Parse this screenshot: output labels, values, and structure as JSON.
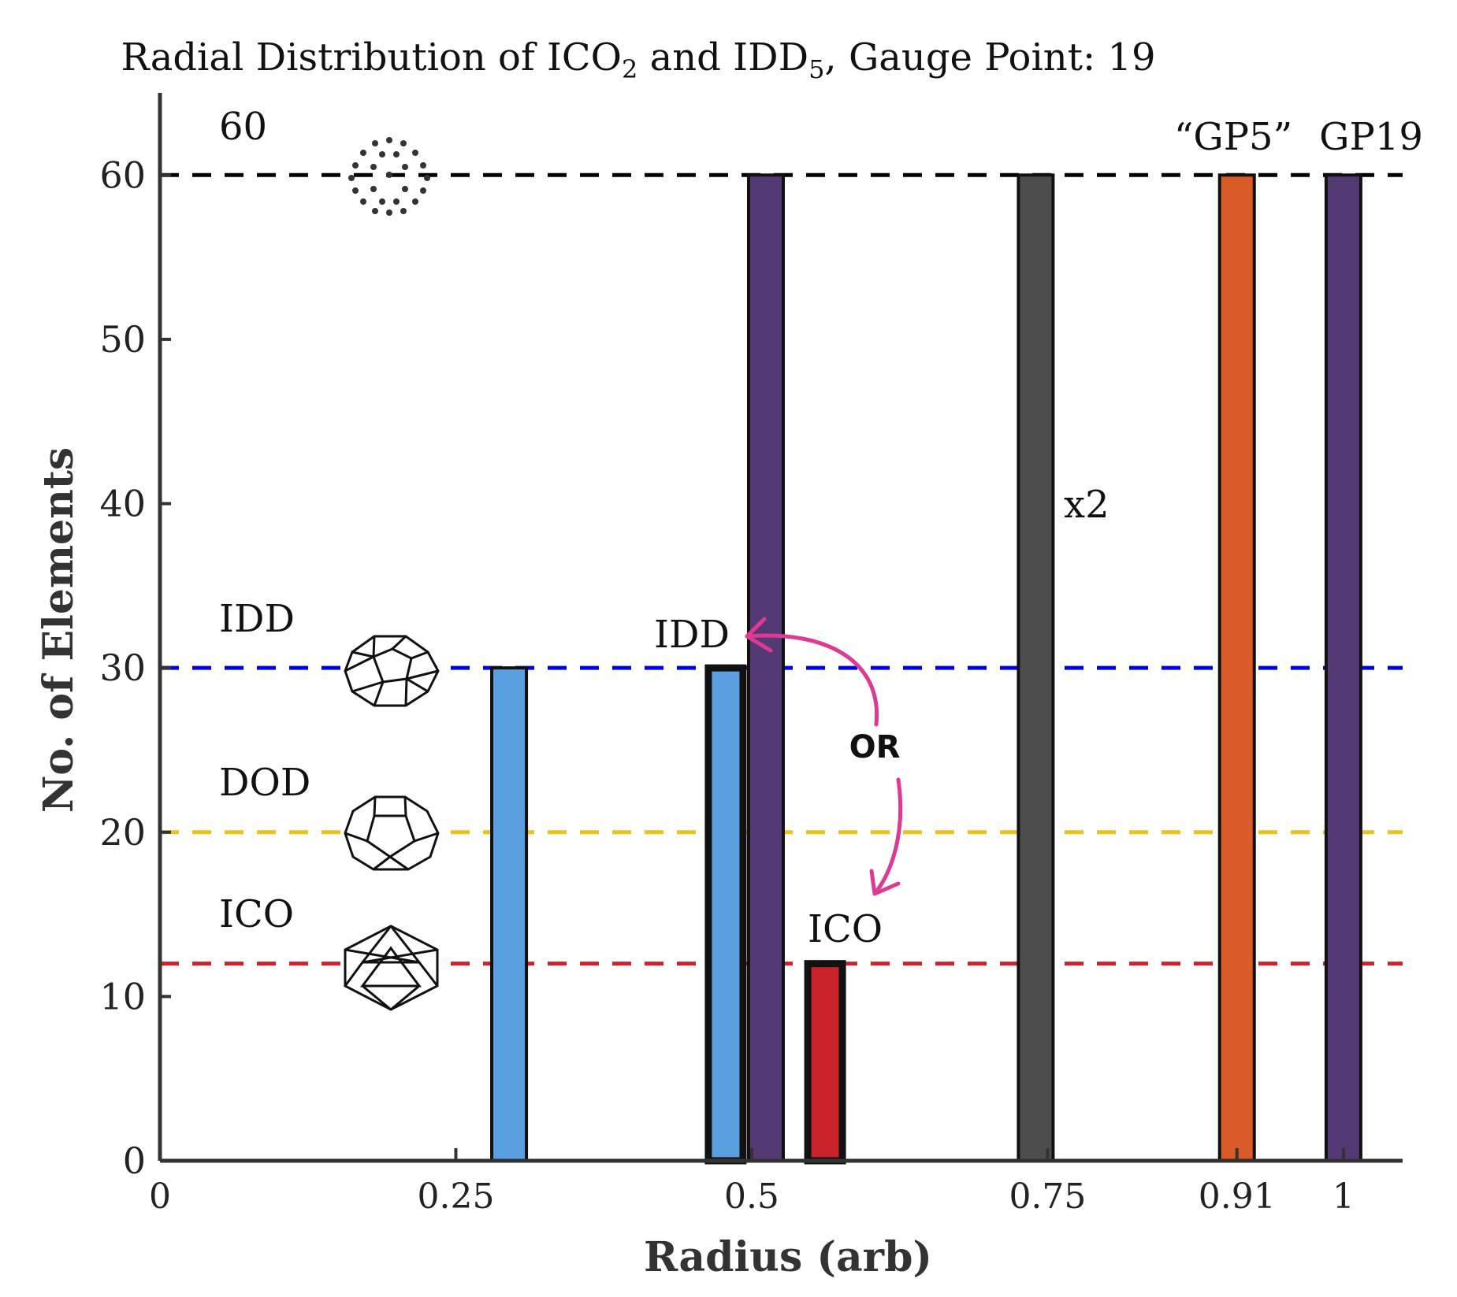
{
  "chart_data": {
    "type": "bar",
    "title": {
      "main": "Radial Distribution of ICO",
      "sub1": "2",
      "mid": " and IDD",
      "sub2": "5",
      "tail": ", Gauge Point: 19"
    },
    "xlabel": "Radius (arb)",
    "ylabel": "No. of Elements",
    "xlim": [
      0,
      1.05
    ],
    "ylim": [
      0,
      65
    ],
    "xticks": [
      {
        "value": 0,
        "label": "0"
      },
      {
        "value": 0.25,
        "label": "0.25"
      },
      {
        "value": 0.5,
        "label": "0.5"
      },
      {
        "value": 0.75,
        "label": "0.75"
      },
      {
        "value": 0.91,
        "label": "0.91"
      },
      {
        "value": 1.0,
        "label": "1"
      }
    ],
    "yticks": [
      0,
      10,
      20,
      30,
      40,
      50,
      60
    ],
    "bars": [
      {
        "x": 0.295,
        "value": 30,
        "color": "#5aa0e0",
        "outline": "normal"
      },
      {
        "x": 0.478,
        "value": 30,
        "color": "#5aa0e0",
        "outline": "bold"
      },
      {
        "x": 0.512,
        "value": 60,
        "color": "#533a74",
        "outline": "normal"
      },
      {
        "x": 0.562,
        "value": 12,
        "color": "#c8222a",
        "outline": "bold"
      },
      {
        "x": 0.74,
        "value": 60,
        "color": "#4d4d4d",
        "outline": "normal"
      },
      {
        "x": 0.91,
        "value": 60,
        "color": "#d95b28",
        "outline": "normal"
      },
      {
        "x": 1.0,
        "value": 60,
        "color": "#533a74",
        "outline": "normal"
      }
    ],
    "reference_lines": [
      {
        "y": 60,
        "color": "#000000"
      },
      {
        "y": 30,
        "color": "#0000ee"
      },
      {
        "y": 20,
        "color": "#e8c21e"
      },
      {
        "y": 12,
        "color": "#d0202e"
      }
    ],
    "annotations": {
      "sixty": "60",
      "idd_left": "IDD",
      "dod_left": "DOD",
      "ico_left": "ICO",
      "idd_bar": "IDD",
      "ico_bar": "ICO",
      "or_label": "OR",
      "x2": "x2",
      "gp5": "“GP5”",
      "gp19": "GP19"
    },
    "arrow_color": "#dd3a94",
    "grid": false,
    "legend": "none"
  }
}
